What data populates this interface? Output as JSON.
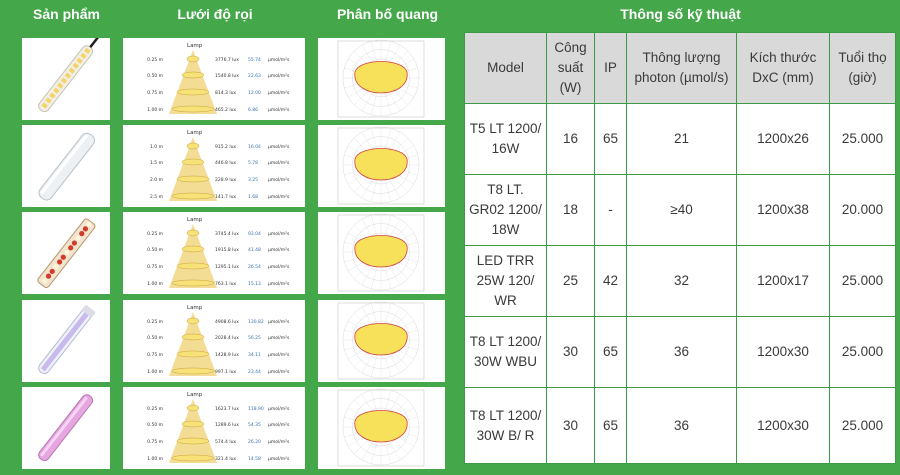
{
  "headers": {
    "product": "Sản phẩm",
    "grid": "Lưới độ rọi",
    "distribution": "Phân bố quang",
    "specs_title": "Thông số kỹ thuật"
  },
  "spec_columns": {
    "model": "Model",
    "power": "Công suất (W)",
    "ip": "IP",
    "photon_flux": "Thông lượng photon (µmol/s)",
    "size": "Kích thước DxC (mm)",
    "lifetime": "Tuổi thọ (giờ)"
  },
  "colors": {
    "background": "#44a74a",
    "header_cell": "#d9d9d9",
    "cone": "#f2d98a",
    "polar_fill": "#f7e05a",
    "polar_outline": "#d04040"
  },
  "grid_title": "Lamp",
  "rows": [
    {
      "model": "T5 LT 1200/ 16W",
      "power": "16",
      "ip": "65",
      "flux": "21",
      "size": "1200x26",
      "life": "25.000",
      "lamp": "clear-tube-with-cable",
      "grid": [
        {
          "h": "0.25 m",
          "lux": "3776.7 lux",
          "ppfd": "55.74",
          "unit": "µmol/m²s"
        },
        {
          "h": "0.50 m",
          "lux": "1540.8 lux",
          "ppfd": "22.63",
          "unit": "µmol/m²s"
        },
        {
          "h": "0.75 m",
          "lux": "814.3 lux",
          "ppfd": "12.00",
          "unit": "µmol/m²s"
        },
        {
          "h": "1.00 m",
          "lux": "465.2 lux",
          "ppfd": "6.86",
          "unit": "µmol/m²s"
        }
      ]
    },
    {
      "model": "T8 LT. GR02 1200/ 18W",
      "power": "18",
      "ip": "-",
      "flux": "≥40",
      "size": "1200x38",
      "life": "20.000",
      "lamp": "frosted-tube",
      "grid": [
        {
          "h": "1.0 m",
          "lux": "915.2 lux",
          "ppfd": "16.04",
          "unit": "µmol/m²s"
        },
        {
          "h": "1.5 m",
          "lux": "446.8 lux",
          "ppfd": "5.78",
          "unit": "µmol/m²s"
        },
        {
          "h": "2.0 m",
          "lux": "228.9 lux",
          "ppfd": "3.25",
          "unit": "µmol/m²s"
        },
        {
          "h": "2.5 m",
          "lux": "141.7 lux",
          "ppfd": "1.68",
          "unit": "µmol/m²s"
        }
      ]
    },
    {
      "model": "LED TRR 25W 120/ WR",
      "power": "25",
      "ip": "42",
      "flux": "32",
      "size": "1200x17",
      "life": "25.000",
      "lamp": "red-white-strip",
      "grid": [
        {
          "h": "0.25 m",
          "lux": "3745.4 lux",
          "ppfd": "93.04",
          "unit": "µmol/m²s"
        },
        {
          "h": "0.50 m",
          "lux": "1915.8 lux",
          "ppfd": "41.48",
          "unit": "µmol/m²s"
        },
        {
          "h": "0.75 m",
          "lux": "1295.1 lux",
          "ppfd": "26.54",
          "unit": "µmol/m²s"
        },
        {
          "h": "1.00 m",
          "lux": "763.1 lux",
          "ppfd": "15.13",
          "unit": "µmol/m²s"
        }
      ]
    },
    {
      "model": "T8 LT 1200/ 30W WBU",
      "power": "30",
      "ip": "65",
      "flux": "36",
      "size": "1200x30",
      "life": "25.000",
      "lamp": "white-blue-tube",
      "grid": [
        {
          "h": "0.25 m",
          "lux": "4908.6 lux",
          "ppfd": "130.82",
          "unit": "µmol/m²s"
        },
        {
          "h": "0.50 m",
          "lux": "2028.4 lux",
          "ppfd": "56.25",
          "unit": "µmol/m²s"
        },
        {
          "h": "0.75 m",
          "lux": "1428.9 lux",
          "ppfd": "34.11",
          "unit": "µmol/m²s"
        },
        {
          "h": "1.00 m",
          "lux": "997.1 lux",
          "ppfd": "23.44",
          "unit": "µmol/m²s"
        }
      ]
    },
    {
      "model": "T8 LT 1200/ 30W B/ R",
      "power": "30",
      "ip": "65",
      "flux": "36",
      "size": "1200x30",
      "life": "25.000",
      "lamp": "purple-tube",
      "grid": [
        {
          "h": "0.25 m",
          "lux": "1623.7 lux",
          "ppfd": "118.90",
          "unit": "µmol/m²s"
        },
        {
          "h": "0.50 m",
          "lux": "1289.6 lux",
          "ppfd": "54.35",
          "unit": "µmol/m²s"
        },
        {
          "h": "0.75 m",
          "lux": "574.4 lux",
          "ppfd": "26.20",
          "unit": "µmol/m²s"
        },
        {
          "h": "1.00 m",
          "lux": "321.4 lux",
          "ppfd": "14.58",
          "unit": "µmol/m²s"
        }
      ]
    }
  ]
}
